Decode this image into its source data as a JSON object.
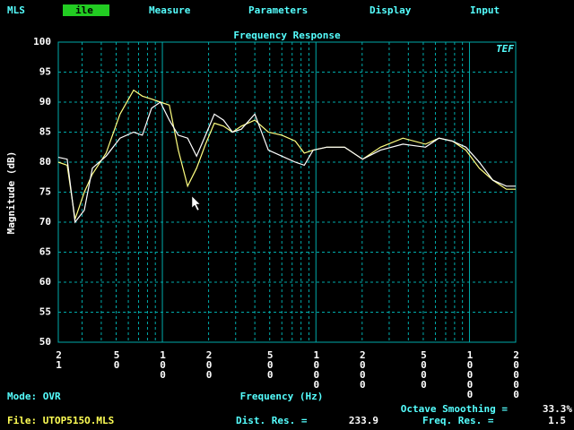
{
  "menu": [
    "MLS",
    "ile",
    "Measure",
    "Parameters",
    "Display",
    "Input"
  ],
  "chart_data": {
    "type": "line",
    "title": "Frequency Response",
    "logo": "TEF",
    "y_label": "Magnitude (dB)",
    "x_label": "Frequency (Hz)",
    "x": [
      21,
      24,
      27,
      31,
      35,
      43,
      53,
      65,
      74,
      85,
      97,
      111,
      127,
      146,
      167,
      191,
      218,
      250,
      286,
      327,
      400,
      490,
      600,
      733,
      840,
      960,
      1175,
      1537,
      2014,
      2636,
      3690,
      5167,
      6324,
      7742,
      9480,
      11590,
      14190,
      17380,
      20000
    ],
    "series": [
      {
        "color": "#ffff80",
        "values": [
          80,
          79.5,
          70.5,
          75,
          78,
          81.5,
          88,
          92,
          91,
          90.5,
          90,
          89.5,
          82,
          76,
          79,
          83,
          86.5,
          86,
          85,
          86,
          87,
          85,
          84.5,
          83.5,
          81.5,
          82,
          82.5,
          82.5,
          80.5,
          82.5,
          84,
          83,
          84,
          83.5,
          82,
          79,
          77,
          75.5,
          75.5
        ]
      },
      {
        "color": "#ffffff",
        "values": [
          80.8,
          80.5,
          70,
          72,
          79,
          81,
          84,
          85,
          84.5,
          89,
          90,
          87,
          84.5,
          84,
          81,
          84.5,
          88,
          87,
          85,
          85.5,
          88,
          82,
          81,
          80,
          79.5,
          82,
          82.5,
          82.5,
          80.5,
          82,
          83,
          82.5,
          84,
          83.5,
          82.5,
          80,
          77,
          76,
          76
        ]
      }
    ],
    "x_log": true,
    "xlim": [
      21,
      20000
    ],
    "xticks": [
      21,
      50,
      100,
      200,
      500,
      1000,
      2000,
      5000,
      10000,
      20000
    ],
    "xgrid_minor": [
      30,
      40,
      60,
      70,
      80,
      90,
      300,
      400,
      600,
      700,
      800,
      900,
      3000,
      4000,
      6000,
      7000,
      8000,
      9000
    ],
    "ylim": [
      50,
      100
    ],
    "yticks": [
      50,
      55,
      60,
      65,
      70,
      75,
      80,
      85,
      90,
      95,
      100
    ],
    "grid": true
  },
  "status": {
    "mode": "Mode: OVR",
    "file": "File: UTOP515O.MLS",
    "smoothing_label": "Octave Smoothing =",
    "smoothing": "33.3%",
    "dist_label": "Dist. Res. =",
    "dist": "233.9",
    "freq_label": "Freq. Res. =",
    "freq": "1.5"
  }
}
